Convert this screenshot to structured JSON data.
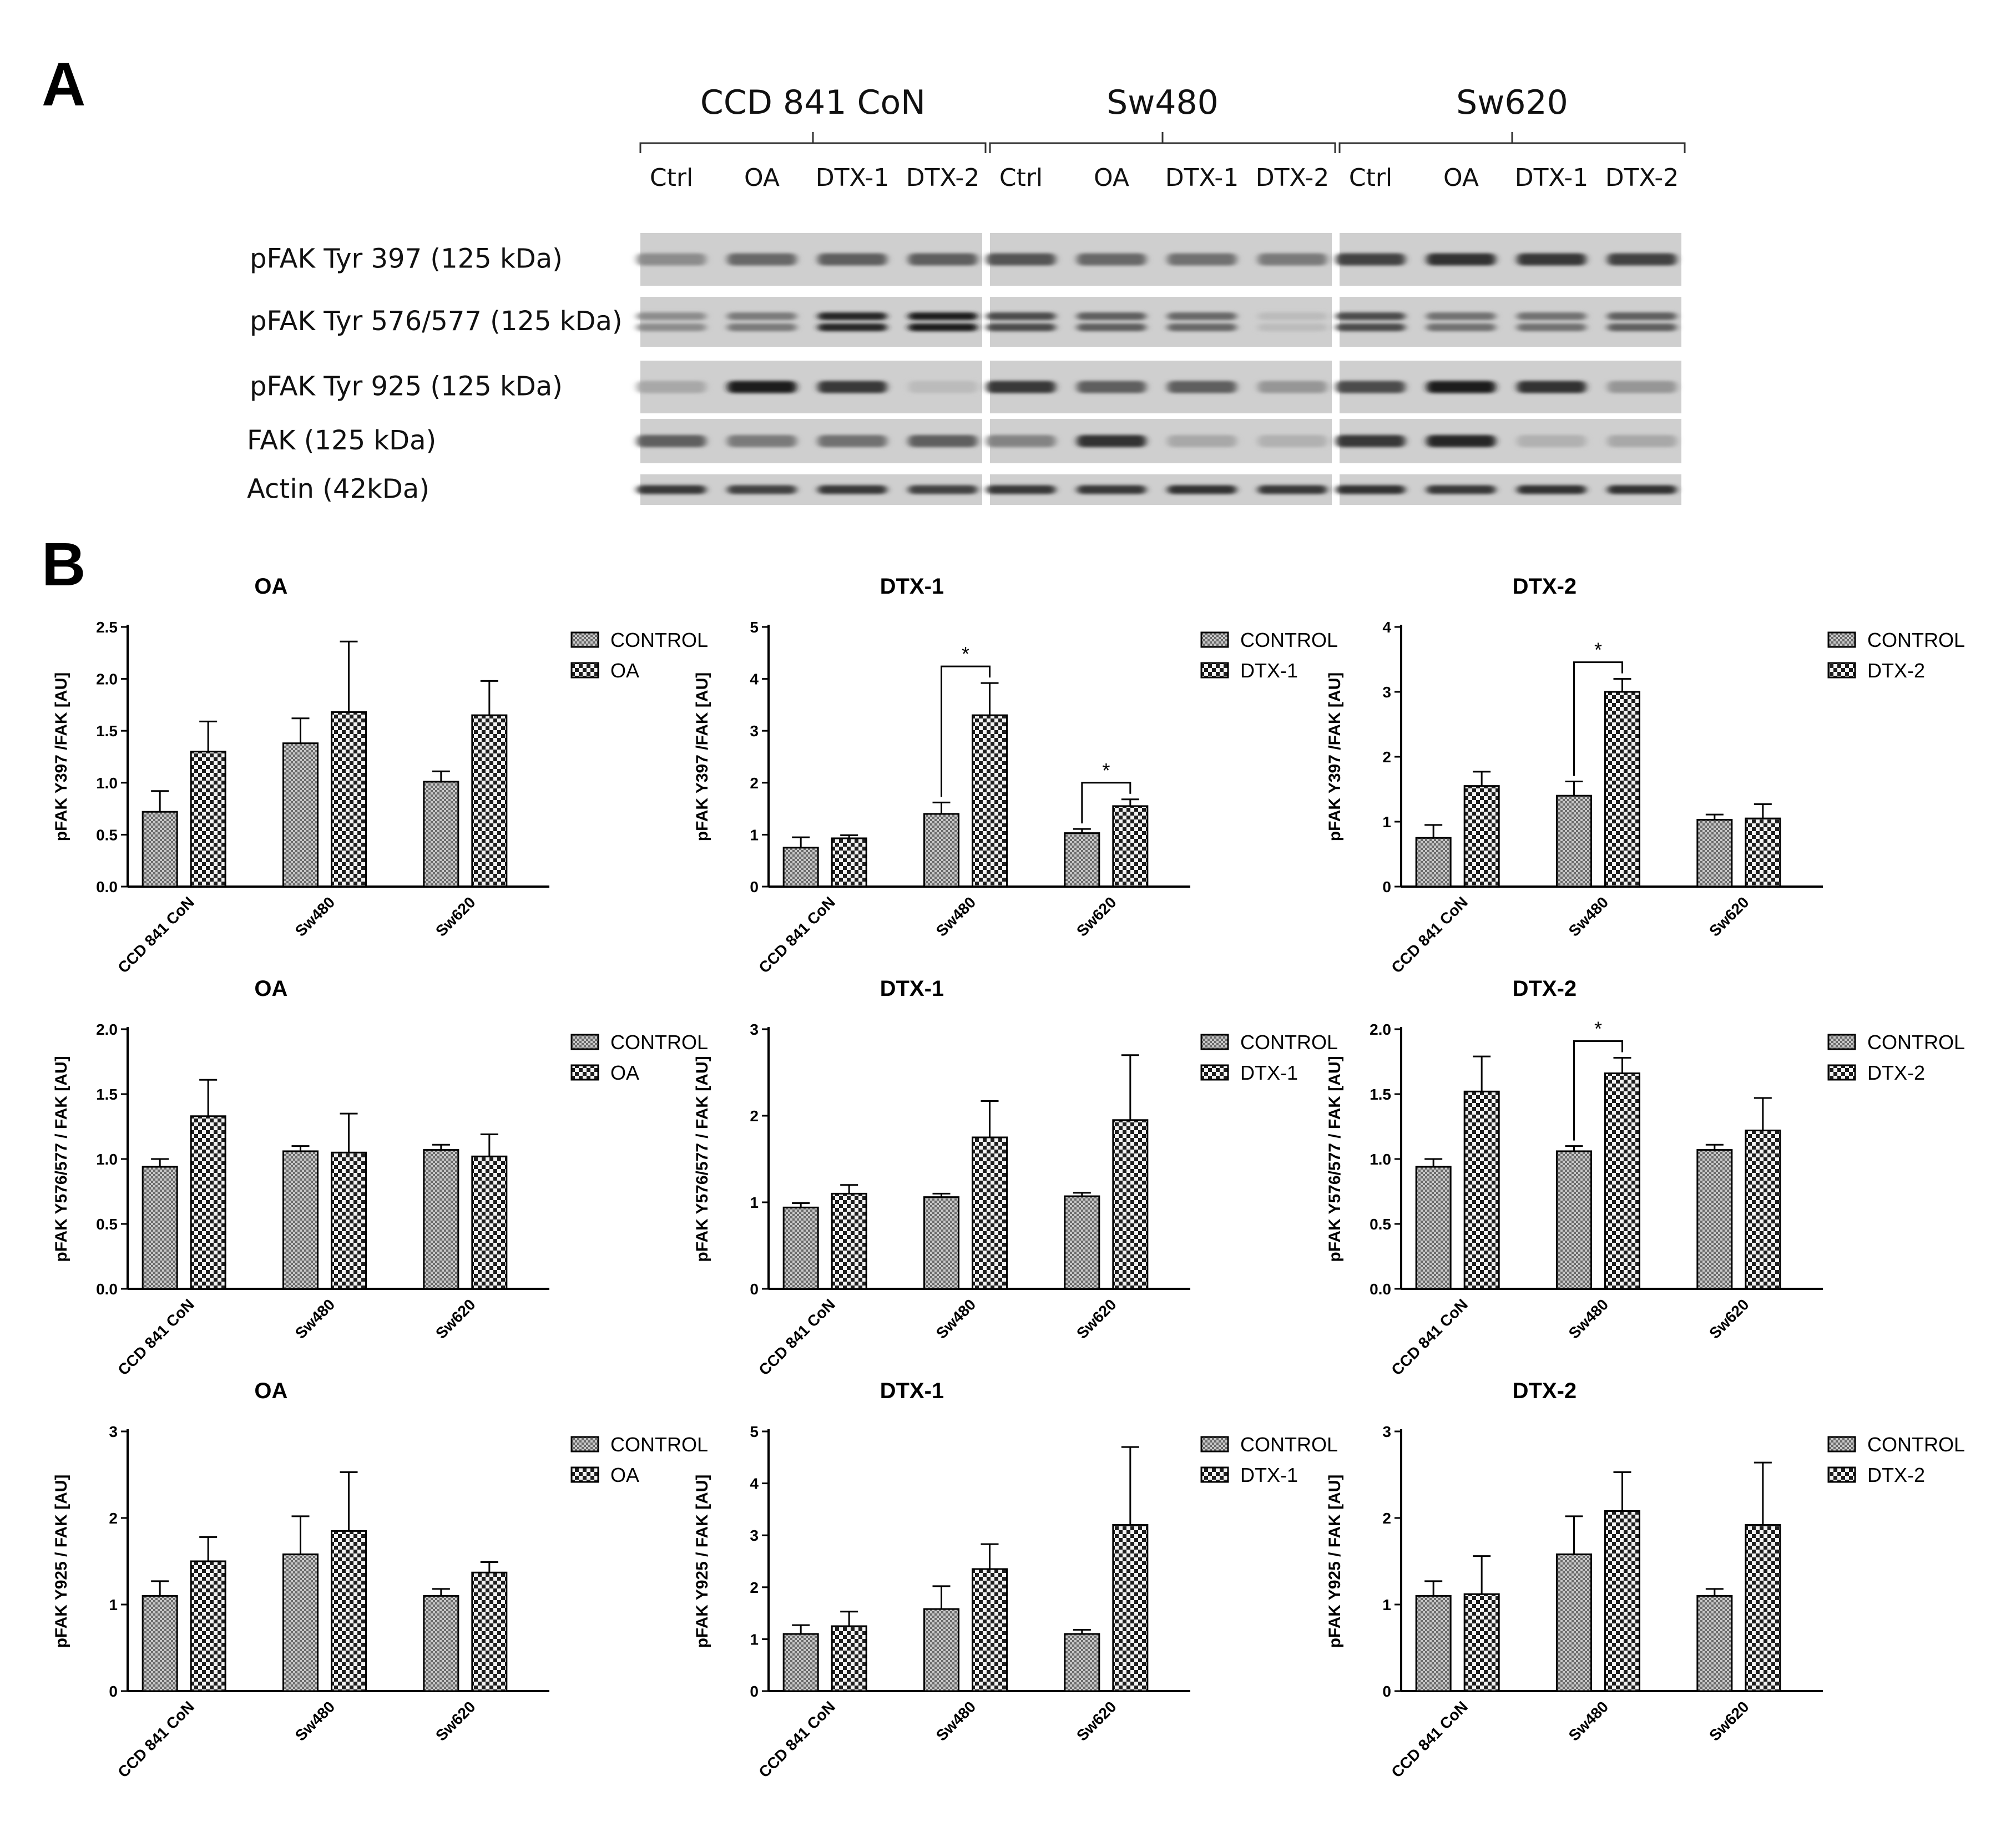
{
  "panel_a": {
    "letter": "A",
    "groups": [
      {
        "name": "CCD 841 CoN",
        "lanes": [
          "Ctrl",
          "OA",
          "DTX-1",
          "DTX-2"
        ]
      },
      {
        "name": "Sw480",
        "lanes": [
          "Ctrl",
          "OA",
          "DTX-1",
          "DTX-2"
        ]
      },
      {
        "name": "Sw620",
        "lanes": [
          "Ctrl",
          "OA",
          "DTX-1",
          "DTX-2"
        ]
      }
    ],
    "rows": [
      "pFAK Tyr 397 (125 kDa)",
      "pFAK Tyr 576/577 (125 kDa)",
      "pFAK Tyr 925 (125 kDa)",
      "FAK (125 kDa)",
      "Actin (42kDa)"
    ],
    "band_intensity": [
      [
        [
          0.35,
          0.55,
          0.6,
          0.6
        ],
        [
          0.65,
          0.55,
          0.5,
          0.45
        ],
        [
          0.75,
          0.85,
          0.8,
          0.75
        ]
      ],
      [
        [
          0.35,
          0.45,
          0.9,
          0.95
        ],
        [
          0.7,
          0.6,
          0.55,
          0.1
        ],
        [
          0.7,
          0.5,
          0.5,
          0.6
        ]
      ],
      [
        [
          0.2,
          0.95,
          0.8,
          0.1
        ],
        [
          0.8,
          0.6,
          0.6,
          0.3
        ],
        [
          0.7,
          0.95,
          0.85,
          0.3
        ]
      ],
      [
        [
          0.6,
          0.45,
          0.5,
          0.6
        ],
        [
          0.4,
          0.85,
          0.2,
          0.15
        ],
        [
          0.8,
          0.9,
          0.15,
          0.2
        ]
      ],
      [
        [
          0.8,
          0.75,
          0.8,
          0.75
        ],
        [
          0.8,
          0.8,
          0.85,
          0.8
        ],
        [
          0.85,
          0.8,
          0.85,
          0.85
        ]
      ]
    ]
  },
  "panel_b": {
    "letter": "B"
  },
  "legend_control": "CONTROL",
  "chart_data": [
    {
      "type": "bar",
      "title": "OA",
      "ylabel": "pFAK Y397 /FAK [AU]",
      "categories": [
        "CCD 841 CoN",
        "Sw480",
        "Sw620"
      ],
      "series": [
        {
          "name": "CONTROL",
          "values": [
            0.72,
            1.38,
            1.01
          ],
          "errors": [
            0.2,
            0.24,
            0.1
          ]
        },
        {
          "name": "OA",
          "values": [
            1.3,
            1.68,
            1.65
          ],
          "errors": [
            0.29,
            0.68,
            0.33
          ]
        }
      ],
      "ylim": [
        0,
        2.5
      ],
      "yticks": [
        "0.0",
        "0.5",
        "1.0",
        "1.5",
        "2.0",
        "2.5"
      ],
      "significance": []
    },
    {
      "type": "bar",
      "title": "DTX-1",
      "ylabel": "pFAK Y397 /FAK [AU]",
      "categories": [
        "CCD 841 CoN",
        "Sw480",
        "Sw620"
      ],
      "series": [
        {
          "name": "CONTROL",
          "values": [
            0.75,
            1.4,
            1.03
          ],
          "errors": [
            0.2,
            0.22,
            0.08
          ]
        },
        {
          "name": "DTX-1",
          "values": [
            0.93,
            3.3,
            1.55
          ],
          "errors": [
            0.06,
            0.62,
            0.13
          ]
        }
      ],
      "ylim": [
        0,
        5
      ],
      "yticks": [
        "0",
        "1",
        "2",
        "3",
        "4",
        "5"
      ],
      "significance": [
        {
          "category": 1,
          "label": "*"
        },
        {
          "category": 2,
          "label": "*"
        }
      ]
    },
    {
      "type": "bar",
      "title": "DTX-2",
      "ylabel": "pFAK Y397 /FAK [AU]",
      "categories": [
        "CCD 841 CoN",
        "Sw480",
        "Sw620"
      ],
      "series": [
        {
          "name": "CONTROL",
          "values": [
            0.75,
            1.4,
            1.03
          ],
          "errors": [
            0.2,
            0.22,
            0.08
          ]
        },
        {
          "name": "DTX-2",
          "values": [
            1.55,
            3.0,
            1.05
          ],
          "errors": [
            0.22,
            0.2,
            0.22
          ]
        }
      ],
      "ylim": [
        0,
        4
      ],
      "yticks": [
        "0",
        "1",
        "2",
        "3",
        "4"
      ],
      "significance": [
        {
          "category": 1,
          "label": "*"
        }
      ]
    },
    {
      "type": "bar",
      "title": "OA",
      "ylabel": "pFAK Y576/577 / FAK [AU]",
      "categories": [
        "CCD 841 CoN",
        "Sw480",
        "Sw620"
      ],
      "series": [
        {
          "name": "CONTROL",
          "values": [
            0.94,
            1.06,
            1.07
          ],
          "errors": [
            0.06,
            0.04,
            0.04
          ]
        },
        {
          "name": "OA",
          "values": [
            1.33,
            1.05,
            1.02
          ],
          "errors": [
            0.28,
            0.3,
            0.17
          ]
        }
      ],
      "ylim": [
        0,
        2.0
      ],
      "yticks": [
        "0.0",
        "0.5",
        "1.0",
        "1.5",
        "2.0"
      ],
      "significance": []
    },
    {
      "type": "bar",
      "title": "DTX-1",
      "ylabel": "pFAK Y576/577 / FAK [AU]",
      "categories": [
        "CCD 841 CoN",
        "Sw480",
        "Sw620"
      ],
      "series": [
        {
          "name": "CONTROL",
          "values": [
            0.94,
            1.06,
            1.07
          ],
          "errors": [
            0.05,
            0.04,
            0.04
          ]
        },
        {
          "name": "DTX-1",
          "values": [
            1.1,
            1.75,
            1.95
          ],
          "errors": [
            0.1,
            0.42,
            0.75
          ]
        }
      ],
      "ylim": [
        0,
        3
      ],
      "yticks": [
        "0",
        "1",
        "2",
        "3"
      ],
      "significance": []
    },
    {
      "type": "bar",
      "title": "DTX-2",
      "ylabel": "pFAK Y576/577 / FAK [AU]",
      "categories": [
        "CCD 841 CoN",
        "Sw480",
        "Sw620"
      ],
      "series": [
        {
          "name": "CONTROL",
          "values": [
            0.94,
            1.06,
            1.07
          ],
          "errors": [
            0.06,
            0.04,
            0.04
          ]
        },
        {
          "name": "DTX-2",
          "values": [
            1.52,
            1.66,
            1.22
          ],
          "errors": [
            0.27,
            0.12,
            0.25
          ]
        }
      ],
      "ylim": [
        0,
        2.0
      ],
      "yticks": [
        "0.0",
        "0.5",
        "1.0",
        "1.5",
        "2.0"
      ],
      "significance": [
        {
          "category": 1,
          "label": "*"
        }
      ]
    },
    {
      "type": "bar",
      "title": "OA",
      "ylabel": "pFAK Y925 / FAK [AU]",
      "categories": [
        "CCD 841 CoN",
        "Sw480",
        "Sw620"
      ],
      "series": [
        {
          "name": "CONTROL",
          "values": [
            1.1,
            1.58,
            1.1
          ],
          "errors": [
            0.17,
            0.44,
            0.08
          ]
        },
        {
          "name": "OA",
          "values": [
            1.5,
            1.85,
            1.37
          ],
          "errors": [
            0.28,
            0.68,
            0.12
          ]
        }
      ],
      "ylim": [
        0,
        3
      ],
      "yticks": [
        "0",
        "1",
        "2",
        "3"
      ],
      "significance": []
    },
    {
      "type": "bar",
      "title": "DTX-1",
      "ylabel": "pFAK Y925 / FAK [AU]",
      "categories": [
        "CCD 841 CoN",
        "Sw480",
        "Sw620"
      ],
      "series": [
        {
          "name": "CONTROL",
          "values": [
            1.1,
            1.58,
            1.1
          ],
          "errors": [
            0.17,
            0.44,
            0.08
          ]
        },
        {
          "name": "DTX-1",
          "values": [
            1.25,
            2.35,
            3.2
          ],
          "errors": [
            0.28,
            0.48,
            1.5
          ]
        }
      ],
      "ylim": [
        0,
        5
      ],
      "yticks": [
        "0",
        "1",
        "2",
        "3",
        "4",
        "5"
      ],
      "significance": []
    },
    {
      "type": "bar",
      "title": "DTX-2",
      "ylabel": "pFAK Y925 / FAK [AU]",
      "categories": [
        "CCD 841 CoN",
        "Sw480",
        "Sw620"
      ],
      "series": [
        {
          "name": "CONTROL",
          "values": [
            1.1,
            1.58,
            1.1
          ],
          "errors": [
            0.17,
            0.44,
            0.08
          ]
        },
        {
          "name": "DTX-2",
          "values": [
            1.12,
            2.08,
            1.92
          ],
          "errors": [
            0.44,
            0.45,
            0.72
          ]
        }
      ],
      "ylim": [
        0,
        3
      ],
      "yticks": [
        "0",
        "1",
        "2",
        "3"
      ],
      "significance": []
    }
  ]
}
